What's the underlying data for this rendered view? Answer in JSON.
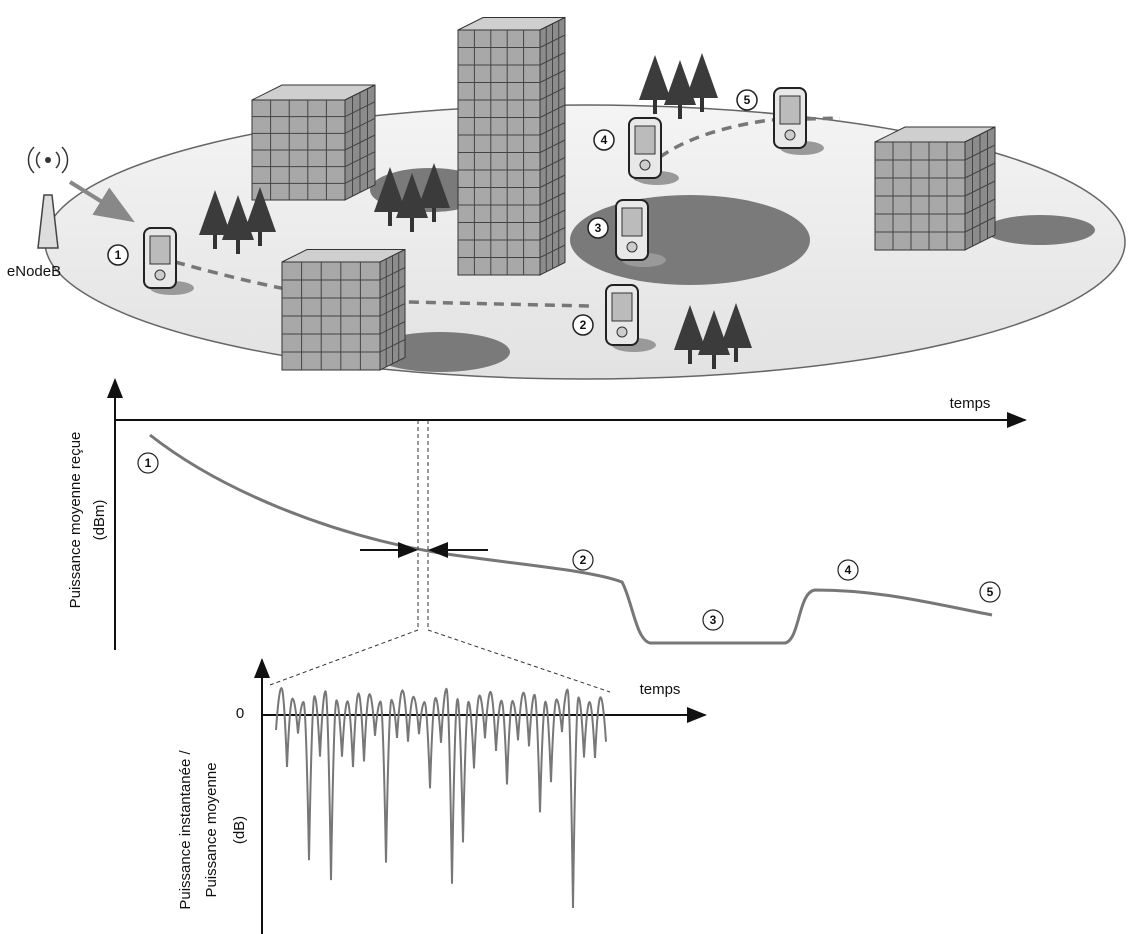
{
  "scene": {
    "base_station": "eNodeB",
    "positions": [
      "1",
      "2",
      "3",
      "4",
      "5"
    ]
  },
  "mean_power_plot": {
    "x_label": "temps",
    "y_label": [
      "Puissance moyenne reçue",
      "(dBm)"
    ],
    "markers": [
      "1",
      "2",
      "3",
      "4",
      "5"
    ]
  },
  "fading_plot": {
    "x_label": "temps",
    "zero_label": "0",
    "y_label": [
      "Puissance instantanée /",
      "Puissance moyenne",
      "(dB)"
    ]
  }
}
